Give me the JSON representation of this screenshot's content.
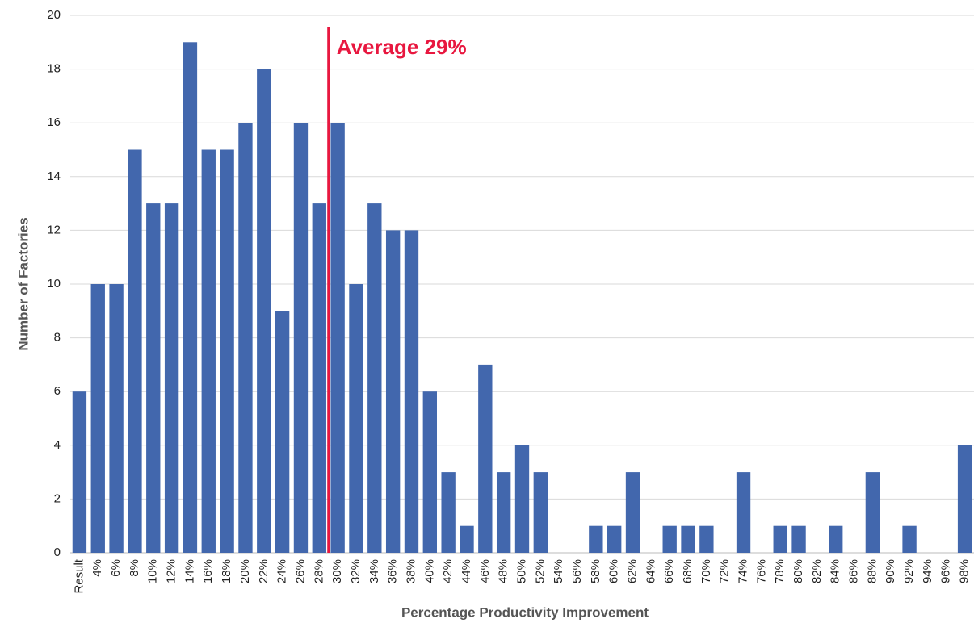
{
  "chart_data": {
    "type": "bar",
    "x_label": "Percentage Productivity Improvement",
    "y_label": "Number of Factories",
    "categories": [
      "Result",
      "4%",
      "6%",
      "8%",
      "10%",
      "12%",
      "14%",
      "16%",
      "18%",
      "20%",
      "22%",
      "24%",
      "26%",
      "28%",
      "30%",
      "32%",
      "34%",
      "36%",
      "38%",
      "40%",
      "42%",
      "44%",
      "46%",
      "48%",
      "50%",
      "52%",
      "54%",
      "56%",
      "58%",
      "60%",
      "62%",
      "64%",
      "66%",
      "68%",
      "70%",
      "72%",
      "74%",
      "76%",
      "78%",
      "80%",
      "82%",
      "84%",
      "86%",
      "88%",
      "90%",
      "92%",
      "94%",
      "96%",
      "98%"
    ],
    "values": [
      6,
      10,
      10,
      15,
      13,
      13,
      19,
      15,
      15,
      16,
      18,
      9,
      16,
      13,
      16,
      10,
      13,
      12,
      12,
      6,
      3,
      1,
      7,
      3,
      4,
      3,
      0,
      0,
      1,
      1,
      3,
      0,
      1,
      1,
      1,
      0,
      3,
      0,
      1,
      1,
      0,
      1,
      0,
      3,
      0,
      1,
      0,
      0,
      4
    ],
    "color": "#4267ad",
    "ylim": [
      0,
      20
    ],
    "yticks": [
      0,
      2,
      4,
      6,
      8,
      10,
      12,
      14,
      16,
      18,
      20
    ],
    "grid": true,
    "annotation": {
      "text": "Average 29%",
      "value": 29,
      "color": "#e8173f"
    }
  }
}
